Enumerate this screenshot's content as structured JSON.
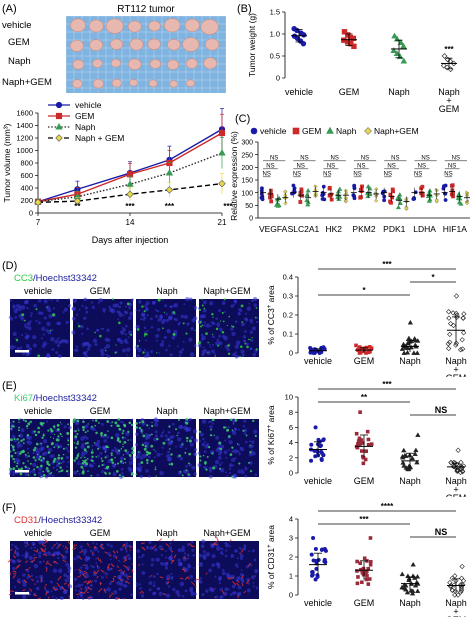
{
  "colors": {
    "vehicle": "#1a1aa8",
    "gem": "#cc2a2a",
    "naph": "#3a9a55",
    "naph_gem": "#e8d84a",
    "tray": "#7fb3e0",
    "tumor": "#e6b8b0",
    "cc3": "#2ecc40",
    "ki67": "#3cd070",
    "cd31": "#e03030",
    "hoechst": "#1a1a9e"
  },
  "panel_a": {
    "label": "(A)",
    "photo_title": "RT112 tumor",
    "photo_rows": [
      "vehicle",
      "GEM",
      "Naph",
      "Naph+GEM"
    ],
    "tumor_counts": [
      8,
      8,
      8,
      7
    ],
    "chart_data": {
      "type": "line",
      "xlabel": "Days after injection",
      "ylabel": "Tumor volume (mm³)",
      "x": [
        7,
        10,
        14,
        17,
        21
      ],
      "x_ticks": [
        "7",
        "14",
        "21"
      ],
      "x_tick_values": [
        7,
        14,
        21
      ],
      "ylim": [
        0,
        1600
      ],
      "y_ticks": [
        "0",
        "200",
        "400",
        "600",
        "800",
        "1000",
        "1200",
        "1400",
        "1600"
      ],
      "y_tick_values": [
        0,
        200,
        400,
        600,
        800,
        1000,
        1200,
        1400,
        1600
      ],
      "legend": [
        "vehicle",
        "GEM",
        "Naph",
        "Naph + GEM"
      ],
      "series": [
        {
          "name": "vehicle",
          "values": [
            180,
            380,
            640,
            850,
            1340
          ],
          "errors": [
            40,
            130,
            180,
            220,
            330
          ]
        },
        {
          "name": "GEM",
          "values": [
            180,
            300,
            620,
            800,
            1280
          ],
          "errors": [
            40,
            110,
            170,
            200,
            300
          ]
        },
        {
          "name": "Naph",
          "values": [
            180,
            260,
            460,
            640,
            960
          ],
          "errors": [
            40,
            90,
            130,
            170,
            250
          ]
        },
        {
          "name": "Naph + GEM",
          "values": [
            170,
            190,
            300,
            370,
            470
          ],
          "errors": [
            30,
            60,
            100,
            120,
            160
          ]
        }
      ],
      "annotations": [
        {
          "x": 10,
          "text": "**"
        },
        {
          "x": 14,
          "text": "***"
        },
        {
          "x": 17,
          "text": "***"
        },
        {
          "x": 21,
          "text": "***"
        }
      ]
    }
  },
  "panel_b": {
    "label": "(B)",
    "chart_data": {
      "type": "scatter",
      "ylabel": "Tumor weight (g)",
      "ylim": [
        0,
        1.5
      ],
      "y_ticks": [
        "0",
        "0.5",
        "1.0",
        "1.5"
      ],
      "y_tick_values": [
        0,
        0.5,
        1.0,
        1.5
      ],
      "categories": [
        "vehicle",
        "GEM",
        "Naph",
        "Naph\n+\nGEM"
      ],
      "means": [
        0.96,
        0.87,
        0.66,
        0.33
      ],
      "errors": [
        0.14,
        0.13,
        0.2,
        0.12
      ],
      "points": [
        [
          1.12,
          1.08,
          1.02,
          0.98,
          0.95,
          0.9,
          0.84,
          0.78
        ],
        [
          1.05,
          0.98,
          0.92,
          0.9,
          0.86,
          0.82,
          0.78,
          0.72
        ],
        [
          0.95,
          0.88,
          0.8,
          0.72,
          0.62,
          0.55,
          0.48,
          0.38
        ],
        [
          0.5,
          0.42,
          0.38,
          0.33,
          0.28,
          0.24,
          0.2
        ]
      ],
      "annotations": [
        {
          "index": 3,
          "text": "***"
        }
      ]
    }
  },
  "panel_c": {
    "label": "(C)",
    "chart_data": {
      "type": "scatter",
      "ylabel": "Relative expression (%)",
      "ylim": [
        0,
        300
      ],
      "y_ticks": [
        "0",
        "50",
        "100",
        "150",
        "200",
        "250",
        "300"
      ],
      "y_tick_values": [
        0,
        50,
        100,
        150,
        200,
        250,
        300
      ],
      "legend": [
        "vehicle",
        "GEM",
        "Naph",
        "Naph+GEM"
      ],
      "categories": [
        "VEGFA",
        "SLC2A1",
        "HK2",
        "PKM2",
        "PDK1",
        "LDHA",
        "HIF1A"
      ],
      "means": [
        [
          100,
          95,
          75,
          80
        ],
        [
          100,
          90,
          80,
          105
        ],
        [
          100,
          95,
          90,
          90
        ],
        [
          100,
          105,
          100,
          95
        ],
        [
          100,
          85,
          70,
          65
        ],
        [
          100,
          100,
          90,
          95
        ],
        [
          100,
          105,
          85,
          80
        ]
      ],
      "annotations": [
        {
          "index": 0,
          "labels": [
            "NS",
            "NS",
            "NS"
          ]
        },
        {
          "index": 1,
          "labels": [
            "NS",
            "NS",
            "NS"
          ]
        },
        {
          "index": 2,
          "labels": [
            "NS",
            "NS",
            "NS"
          ]
        },
        {
          "index": 3,
          "labels": [
            "NS",
            "NS",
            "NS"
          ]
        },
        {
          "index": 4,
          "labels": [
            "NS",
            "NS",
            "NS"
          ]
        },
        {
          "index": 5,
          "labels": [
            "NS",
            "NS",
            "NS"
          ]
        },
        {
          "index": 6,
          "labels": [
            "NS",
            "NS",
            "NS"
          ]
        }
      ]
    }
  },
  "panel_d": {
    "label": "(D)",
    "stain": "CC3",
    "counter": "/Hoechst33342",
    "groups": [
      "vehicle",
      "GEM",
      "Naph",
      "Naph+GEM"
    ],
    "chart_data": {
      "type": "scatter",
      "ylabel_prefix": "% of CC3",
      "ylabel_sup": "+",
      "ylabel_suffix": " area",
      "ylim": [
        0,
        0.4
      ],
      "y_ticks": [
        "0",
        "0.1",
        "0.2",
        "0.3",
        "0.4"
      ],
      "y_tick_values": [
        0,
        0.1,
        0.2,
        0.3,
        0.4
      ],
      "categories": [
        "vehicle",
        "GEM",
        "Naph",
        "Naph\n+\nGEM"
      ],
      "means": [
        0.012,
        0.015,
        0.035,
        0.12
      ],
      "errors": [
        0.01,
        0.012,
        0.03,
        0.07
      ],
      "spread": [
        0.03,
        0.04,
        0.16,
        0.3
      ],
      "brackets": [
        {
          "from": 0,
          "to": 3,
          "text": "***",
          "level": 0
        },
        {
          "from": 2,
          "to": 3,
          "text": "*",
          "level": 1
        },
        {
          "from": 0,
          "to": 2,
          "text": "*",
          "level": 2
        }
      ]
    }
  },
  "panel_e": {
    "label": "(E)",
    "stain": "Ki67",
    "counter": "/Hoechst33342",
    "groups": [
      "vehicle",
      "GEM",
      "Naph",
      "Naph+GEM"
    ],
    "chart_data": {
      "type": "scatter",
      "ylabel_prefix": "% of Ki67",
      "ylabel_sup": "+",
      "ylabel_suffix": " area",
      "ylim": [
        0,
        10
      ],
      "y_ticks": [
        "0",
        "2",
        "4",
        "6",
        "8",
        "10"
      ],
      "y_tick_values": [
        0,
        2,
        4,
        6,
        8,
        10
      ],
      "categories": [
        "vehicle",
        "GEM",
        "Naph",
        "Naph\n+\nGEM"
      ],
      "means": [
        3.1,
        3.5,
        1.6,
        0.8
      ],
      "errors": [
        1.0,
        1.5,
        1.0,
        0.5
      ],
      "spread": [
        6,
        8,
        5,
        3
      ],
      "brackets": [
        {
          "from": 0,
          "to": 3,
          "text": "***",
          "level": 0
        },
        {
          "from": 0,
          "to": 2,
          "text": "**",
          "level": 1
        },
        {
          "from": 2,
          "to": 3,
          "text": "NS",
          "level": 2
        }
      ]
    }
  },
  "panel_f": {
    "label": "(F)",
    "stain": "CD31",
    "counter": "/Hoechst33342",
    "groups": [
      "vehicle",
      "GEM",
      "Naph",
      "Naph+GEM"
    ],
    "chart_data": {
      "type": "scatter",
      "ylabel_prefix": "% of CD31",
      "ylabel_sup": "+",
      "ylabel_suffix": " area",
      "ylim": [
        0,
        4
      ],
      "y_ticks": [
        "0",
        "1",
        "2",
        "3",
        "4"
      ],
      "y_tick_values": [
        0,
        1,
        2,
        3,
        4
      ],
      "categories": [
        "vehicle",
        "GEM",
        "Naph",
        "Naph\n+\nGEM"
      ],
      "means": [
        1.6,
        1.3,
        0.6,
        0.5
      ],
      "errors": [
        0.6,
        0.5,
        0.35,
        0.35
      ],
      "spread": [
        3,
        3,
        1.6,
        1.5
      ],
      "brackets": [
        {
          "from": 0,
          "to": 3,
          "text": "****",
          "level": 0
        },
        {
          "from": 0,
          "to": 2,
          "text": "***",
          "level": 1
        },
        {
          "from": 2,
          "to": 3,
          "text": "NS",
          "level": 2
        }
      ]
    }
  }
}
